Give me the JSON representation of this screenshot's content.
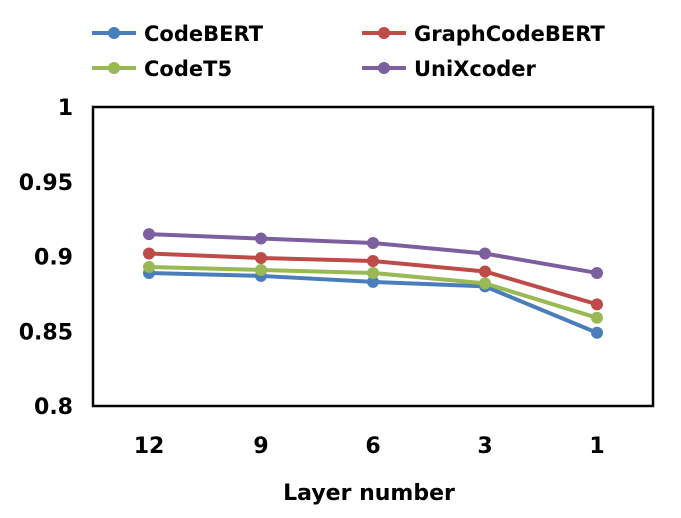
{
  "chart_data": {
    "type": "line",
    "x": [
      "12",
      "9",
      "6",
      "3",
      "1"
    ],
    "xlabel": "Layer number",
    "ylabel": "",
    "ylim": [
      0.8,
      1.0
    ],
    "yticks": [
      "0.8",
      "0.85",
      "0.9",
      "0.95",
      "1"
    ],
    "grid": false,
    "legend_position": "top",
    "series": [
      {
        "name": "CodeBERT",
        "color": "#4a7ebb",
        "values": [
          0.889,
          0.887,
          0.883,
          0.88,
          0.849
        ]
      },
      {
        "name": "GraphCodeBERT",
        "color": "#be4b48",
        "values": [
          0.902,
          0.899,
          0.897,
          0.89,
          0.868
        ]
      },
      {
        "name": "CodeT5",
        "color": "#98b954",
        "values": [
          0.893,
          0.891,
          0.889,
          0.882,
          0.859
        ]
      },
      {
        "name": "UniXcoder",
        "color": "#7d5fa0",
        "values": [
          0.915,
          0.912,
          0.909,
          0.902,
          0.889
        ]
      }
    ]
  }
}
